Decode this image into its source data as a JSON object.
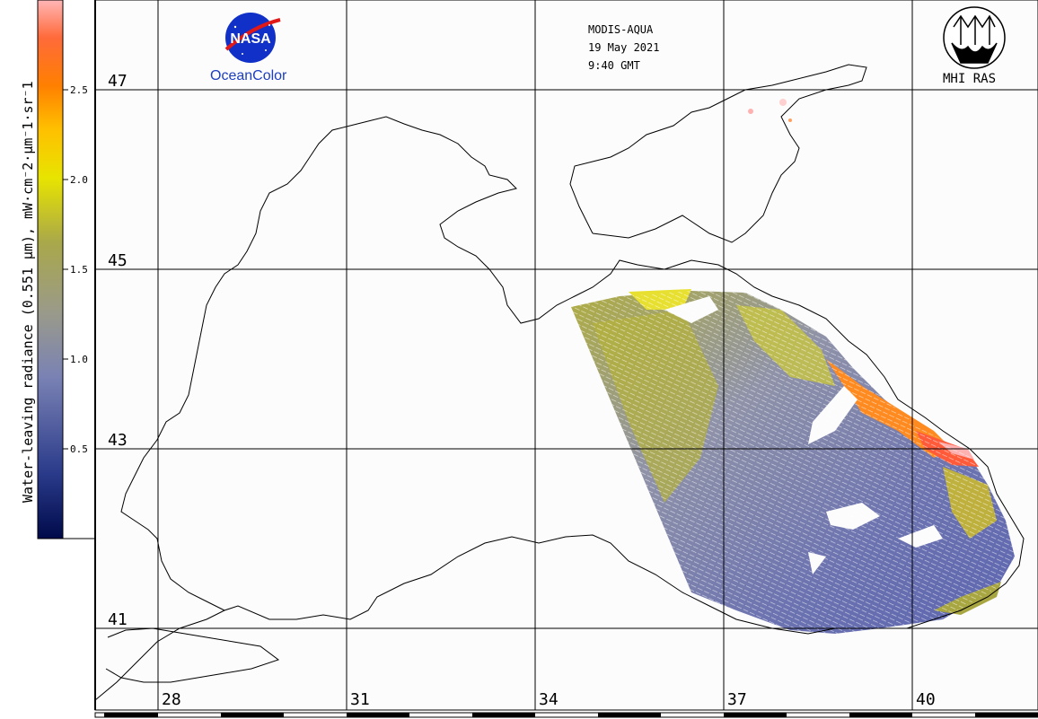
{
  "header": {
    "sensor": "MODIS-AQUA",
    "date": "19 May 2021",
    "time": "9:40 GMT"
  },
  "logos": {
    "nasa_text": "NASA",
    "nasa_caption": "OceanColor",
    "mhi_caption": "MHI RAS"
  },
  "colorbar": {
    "title": "Water-leaving radiance (0.551 µm), mW·cm⁻2·µm⁻1·sr⁻1",
    "ticks": [
      "2.5",
      "2.0",
      "1.5",
      "1.0",
      "0.5"
    ],
    "colors": [
      "#1a1a7a",
      "#4a5aa8",
      "#8c93b8",
      "#a2a36a",
      "#c4c230",
      "#f0e800",
      "#ffb000",
      "#ff7a00",
      "#ffb0b0",
      "#ffd8d8"
    ]
  },
  "grid": {
    "lat_labels": [
      "47",
      "45",
      "43",
      "41"
    ],
    "lon_labels": [
      "28",
      "31",
      "34",
      "37",
      "40"
    ]
  },
  "colors": {
    "coast": "#000000",
    "background": "#ffffff",
    "low": "#6a72ad",
    "mid": "#a6a64a",
    "high": "#ff7a20"
  }
}
